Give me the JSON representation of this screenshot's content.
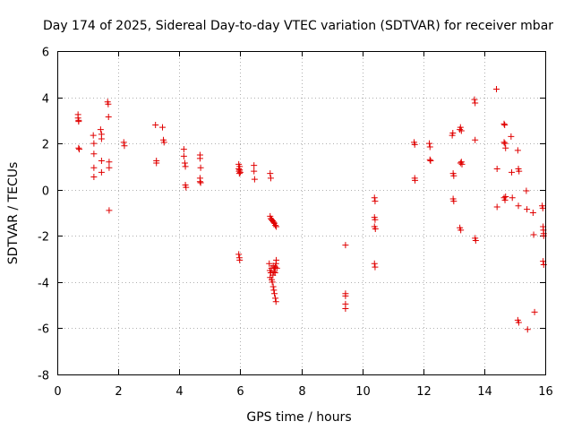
{
  "chart_data": {
    "type": "scatter",
    "title": "Day 174 of 2025, Sidereal Day-to-day VTEC variation (SDTVAR) for receiver mbar",
    "xlabel": "GPS time / hours",
    "ylabel": "SDTVAR / TECUs",
    "xlim": [
      0,
      16
    ],
    "ylim": [
      -8,
      6
    ],
    "xticks": [
      0,
      2,
      4,
      6,
      8,
      10,
      12,
      14,
      16
    ],
    "yticks": [
      -8,
      -6,
      -4,
      -2,
      0,
      2,
      4,
      6
    ],
    "xtick_labels": [
      "0",
      "2",
      "4",
      "6",
      "8",
      "10",
      "12",
      "14",
      "16"
    ],
    "ytick_labels": [
      "-8",
      "-6",
      "-4",
      "-2",
      "0",
      "2",
      "4",
      "6"
    ],
    "grid": true,
    "marker": "+",
    "color": "#e00000",
    "series": [
      {
        "name": "SDTVAR",
        "points": [
          [
            0.68,
            3.25
          ],
          [
            0.68,
            3.1
          ],
          [
            0.7,
            3.0
          ],
          [
            0.7,
            2.95
          ],
          [
            0.7,
            1.8
          ],
          [
            0.72,
            1.75
          ],
          [
            1.18,
            2.35
          ],
          [
            1.2,
            2.0
          ],
          [
            1.2,
            1.55
          ],
          [
            1.2,
            0.95
          ],
          [
            1.2,
            0.55
          ],
          [
            1.42,
            2.6
          ],
          [
            1.45,
            2.4
          ],
          [
            1.45,
            2.2
          ],
          [
            1.45,
            1.25
          ],
          [
            1.45,
            0.75
          ],
          [
            1.65,
            3.8
          ],
          [
            1.67,
            3.7
          ],
          [
            1.68,
            3.15
          ],
          [
            1.7,
            1.2
          ],
          [
            1.7,
            0.95
          ],
          [
            1.7,
            -0.9
          ],
          [
            2.18,
            2.05
          ],
          [
            2.2,
            1.9
          ],
          [
            3.22,
            2.8
          ],
          [
            3.25,
            1.25
          ],
          [
            3.25,
            1.15
          ],
          [
            3.45,
            2.7
          ],
          [
            3.48,
            2.15
          ],
          [
            3.5,
            2.05
          ],
          [
            4.15,
            1.75
          ],
          [
            4.15,
            1.45
          ],
          [
            4.18,
            1.15
          ],
          [
            4.2,
            1.0
          ],
          [
            4.2,
            0.2
          ],
          [
            4.22,
            0.1
          ],
          [
            4.68,
            1.5
          ],
          [
            4.68,
            1.35
          ],
          [
            4.7,
            0.95
          ],
          [
            4.68,
            0.5
          ],
          [
            4.68,
            0.35
          ],
          [
            4.7,
            0.3
          ],
          [
            5.95,
            1.1
          ],
          [
            5.95,
            0.9
          ],
          [
            5.96,
            0.8
          ],
          [
            5.97,
            0.7
          ],
          [
            5.98,
            1.0
          ],
          [
            5.98,
            0.85
          ],
          [
            6.0,
            0.75
          ],
          [
            5.95,
            -2.8
          ],
          [
            5.97,
            -2.95
          ],
          [
            5.98,
            -3.05
          ],
          [
            6.45,
            1.05
          ],
          [
            6.45,
            0.8
          ],
          [
            6.47,
            0.45
          ],
          [
            6.98,
            0.7
          ],
          [
            7.0,
            0.5
          ],
          [
            6.98,
            -1.15
          ],
          [
            7.0,
            -1.25
          ],
          [
            7.03,
            -1.3
          ],
          [
            7.06,
            -1.35
          ],
          [
            7.09,
            -1.4
          ],
          [
            7.12,
            -1.45
          ],
          [
            7.15,
            -1.55
          ],
          [
            7.18,
            -1.6
          ],
          [
            6.95,
            -3.2
          ],
          [
            6.97,
            -3.5
          ],
          [
            6.98,
            -3.8
          ],
          [
            7.0,
            -3.6
          ],
          [
            7.02,
            -3.4
          ],
          [
            7.03,
            -3.9
          ],
          [
            7.05,
            -4.0
          ],
          [
            7.07,
            -3.7
          ],
          [
            7.08,
            -4.2
          ],
          [
            7.1,
            -4.35
          ],
          [
            7.12,
            -4.5
          ],
          [
            7.15,
            -4.7
          ],
          [
            7.17,
            -4.85
          ],
          [
            7.08,
            -3.3
          ],
          [
            7.1,
            -3.55
          ],
          [
            7.12,
            -3.4
          ],
          [
            7.14,
            -3.6
          ],
          [
            7.15,
            -3.35
          ],
          [
            7.17,
            -3.2
          ],
          [
            7.18,
            -3.05
          ],
          [
            7.2,
            -3.4
          ],
          [
            9.45,
            -2.4
          ],
          [
            9.45,
            -4.5
          ],
          [
            9.45,
            -4.6
          ],
          [
            9.45,
            -4.95
          ],
          [
            9.45,
            -5.15
          ],
          [
            10.4,
            -0.35
          ],
          [
            10.42,
            -0.5
          ],
          [
            10.4,
            -1.2
          ],
          [
            10.42,
            -1.3
          ],
          [
            10.4,
            -1.6
          ],
          [
            10.43,
            -1.7
          ],
          [
            10.4,
            -3.2
          ],
          [
            10.42,
            -3.35
          ],
          [
            11.7,
            2.05
          ],
          [
            11.72,
            1.95
          ],
          [
            11.72,
            0.5
          ],
          [
            11.73,
            0.4
          ],
          [
            12.2,
            2.0
          ],
          [
            12.22,
            1.85
          ],
          [
            12.22,
            1.3
          ],
          [
            12.24,
            1.25
          ],
          [
            12.95,
            2.35
          ],
          [
            12.97,
            2.45
          ],
          [
            12.98,
            0.7
          ],
          [
            13.0,
            0.6
          ],
          [
            12.98,
            -0.4
          ],
          [
            13.0,
            -0.5
          ],
          [
            13.2,
            2.6
          ],
          [
            13.22,
            2.7
          ],
          [
            13.25,
            2.55
          ],
          [
            13.22,
            1.15
          ],
          [
            13.25,
            1.2
          ],
          [
            13.27,
            1.1
          ],
          [
            13.2,
            -1.65
          ],
          [
            13.23,
            -1.75
          ],
          [
            13.68,
            3.9
          ],
          [
            13.7,
            3.75
          ],
          [
            13.7,
            2.15
          ],
          [
            13.7,
            -2.1
          ],
          [
            13.72,
            -2.2
          ],
          [
            14.4,
            4.35
          ],
          [
            14.42,
            0.9
          ],
          [
            14.42,
            -0.75
          ],
          [
            14.65,
            2.85
          ],
          [
            14.67,
            2.8
          ],
          [
            14.65,
            2.05
          ],
          [
            14.68,
            2.0
          ],
          [
            14.7,
            1.8
          ],
          [
            14.65,
            -0.35
          ],
          [
            14.68,
            -0.45
          ],
          [
            14.7,
            -0.3
          ],
          [
            14.88,
            2.3
          ],
          [
            14.9,
            0.75
          ],
          [
            14.92,
            -0.35
          ],
          [
            15.1,
            1.7
          ],
          [
            15.12,
            0.9
          ],
          [
            15.14,
            0.8
          ],
          [
            15.12,
            -0.7
          ],
          [
            15.1,
            -5.65
          ],
          [
            15.13,
            -5.75
          ],
          [
            15.38,
            -0.05
          ],
          [
            15.4,
            -0.85
          ],
          [
            15.42,
            -6.05
          ],
          [
            15.6,
            -1.0
          ],
          [
            15.62,
            -1.95
          ],
          [
            15.65,
            -5.3
          ],
          [
            15.9,
            -0.7
          ],
          [
            15.92,
            -0.8
          ],
          [
            15.93,
            -1.6
          ],
          [
            15.94,
            -1.75
          ],
          [
            15.95,
            -1.9
          ],
          [
            15.95,
            -2.0
          ],
          [
            15.93,
            -3.1
          ],
          [
            15.95,
            -3.25
          ]
        ]
      }
    ]
  }
}
